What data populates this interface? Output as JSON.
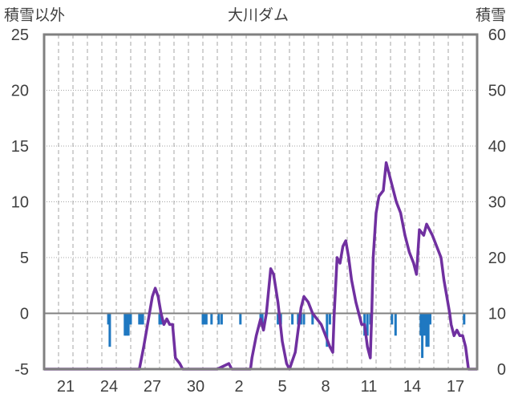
{
  "chart_data": {
    "type": "bar+line",
    "title": "大川ダム",
    "left_axis": {
      "label": "積雪以外",
      "ticks": [
        25,
        20,
        15,
        10,
        5,
        0,
        -5
      ],
      "ylim": [
        -5,
        25
      ]
    },
    "right_axis": {
      "label": "積雪",
      "ticks": [
        60,
        50,
        40,
        30,
        20,
        10,
        0
      ],
      "ylim": [
        0,
        60
      ]
    },
    "x_tick_labels": [
      "21",
      "24",
      "27",
      "30",
      "2",
      "5",
      "8",
      "11",
      "14",
      "17"
    ],
    "x_range": [
      0,
      30
    ],
    "x_tick_positions": [
      1.5,
      4.5,
      7.5,
      10.5,
      13.5,
      16.5,
      19.5,
      22.5,
      25.5,
      28.5
    ],
    "daily_gridlines": 30,
    "grid": true,
    "colors": {
      "bars": "#1f78c1",
      "line": "#7030a0",
      "frame": "#808080",
      "zero_line": "#808080",
      "grid": "#a6a6a6"
    },
    "bar_series": {
      "axis": "left",
      "values": [
        [
          4.45,
          -1.0
        ],
        [
          4.55,
          -3.0
        ],
        [
          5.6,
          -2.0
        ],
        [
          5.72,
          -2.0
        ],
        [
          5.84,
          -2.0
        ],
        [
          6.0,
          -1.0
        ],
        [
          6.6,
          -1.0
        ],
        [
          6.72,
          -1.0
        ],
        [
          6.84,
          -1.0
        ],
        [
          8.0,
          -1.0
        ],
        [
          8.12,
          -1.0
        ],
        [
          11.0,
          -1.0
        ],
        [
          11.12,
          -1.0
        ],
        [
          11.24,
          -1.0
        ],
        [
          11.6,
          -1.0
        ],
        [
          12.1,
          -1.0
        ],
        [
          12.3,
          -1.0
        ],
        [
          13.6,
          -1.0
        ],
        [
          15.0,
          -1.0
        ],
        [
          15.12,
          -1.0
        ],
        [
          16.2,
          -1.0
        ],
        [
          16.4,
          -1.0
        ],
        [
          17.2,
          -1.0
        ],
        [
          17.6,
          -1.0
        ],
        [
          17.8,
          -1.0
        ],
        [
          18.0,
          -1.0
        ],
        [
          18.6,
          -1.0
        ],
        [
          19.6,
          -3.0
        ],
        [
          19.8,
          -1.0
        ],
        [
          22.2,
          -2.0
        ],
        [
          22.4,
          -2.0
        ],
        [
          22.6,
          -1.0
        ],
        [
          24.1,
          -1.0
        ],
        [
          24.35,
          -2.0
        ],
        [
          26.1,
          -2.0
        ],
        [
          26.2,
          -4.0
        ],
        [
          26.35,
          -2.0
        ],
        [
          26.5,
          -3.0
        ],
        [
          26.62,
          -3.0
        ],
        [
          26.75,
          -1.0
        ],
        [
          29.1,
          -1.0
        ]
      ]
    },
    "line_series": {
      "axis": "right",
      "points": [
        [
          0,
          0
        ],
        [
          6.6,
          0
        ],
        [
          6.9,
          4
        ],
        [
          7.1,
          7
        ],
        [
          7.3,
          10
        ],
        [
          7.5,
          13
        ],
        [
          7.7,
          14.5
        ],
        [
          7.9,
          13
        ],
        [
          8.1,
          10
        ],
        [
          8.3,
          8
        ],
        [
          8.5,
          9
        ],
        [
          8.7,
          8
        ],
        [
          8.9,
          8
        ],
        [
          9.1,
          2
        ],
        [
          9.4,
          1
        ],
        [
          9.6,
          0
        ],
        [
          12.0,
          0
        ],
        [
          12.8,
          1
        ],
        [
          13.0,
          0
        ],
        [
          14.3,
          0
        ],
        [
          14.4,
          2
        ],
        [
          14.7,
          6
        ],
        [
          15.0,
          9
        ],
        [
          15.2,
          7
        ],
        [
          15.4,
          10
        ],
        [
          15.7,
          18
        ],
        [
          15.9,
          17
        ],
        [
          16.2,
          12
        ],
        [
          16.5,
          5
        ],
        [
          16.8,
          1
        ],
        [
          17.0,
          0
        ],
        [
          17.4,
          3
        ],
        [
          17.6,
          7
        ],
        [
          17.8,
          11
        ],
        [
          18.0,
          13
        ],
        [
          18.3,
          12
        ],
        [
          18.6,
          10
        ],
        [
          18.9,
          9
        ],
        [
          19.2,
          8
        ],
        [
          19.5,
          6
        ],
        [
          19.8,
          4
        ],
        [
          20.0,
          3
        ],
        [
          20.1,
          10
        ],
        [
          20.3,
          20
        ],
        [
          20.5,
          19
        ],
        [
          20.7,
          22
        ],
        [
          20.9,
          23
        ],
        [
          21.1,
          20
        ],
        [
          21.3,
          16
        ],
        [
          21.6,
          12
        ],
        [
          21.8,
          10
        ],
        [
          22.0,
          8
        ],
        [
          22.2,
          8
        ],
        [
          22.4,
          4
        ],
        [
          22.6,
          2
        ],
        [
          22.7,
          10
        ],
        [
          22.8,
          20
        ],
        [
          23.0,
          28
        ],
        [
          23.2,
          31
        ],
        [
          23.5,
          32
        ],
        [
          23.7,
          37
        ],
        [
          23.9,
          35
        ],
        [
          24.1,
          33
        ],
        [
          24.4,
          30
        ],
        [
          24.7,
          28
        ],
        [
          25.0,
          24
        ],
        [
          25.3,
          21
        ],
        [
          25.6,
          19
        ],
        [
          25.8,
          17
        ],
        [
          26.0,
          25
        ],
        [
          26.3,
          24
        ],
        [
          26.5,
          26
        ],
        [
          26.7,
          25
        ],
        [
          26.9,
          24
        ],
        [
          27.2,
          22
        ],
        [
          27.5,
          20
        ],
        [
          27.7,
          16
        ],
        [
          27.9,
          13
        ],
        [
          28.1,
          10
        ],
        [
          28.2,
          8
        ],
        [
          28.4,
          6
        ],
        [
          28.6,
          7
        ],
        [
          28.8,
          6
        ],
        [
          29.0,
          6
        ],
        [
          29.2,
          4
        ],
        [
          29.4,
          0
        ],
        [
          30,
          0
        ]
      ]
    }
  }
}
